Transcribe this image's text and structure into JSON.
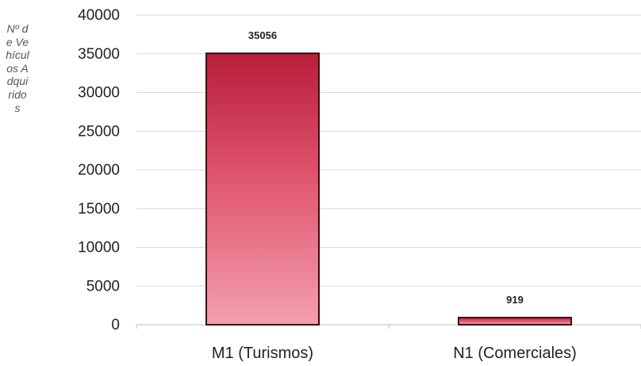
{
  "chart_data": {
    "type": "bar",
    "categories": [
      "M1 (Turismos)",
      "N1 (Comerciales)"
    ],
    "values": [
      35056,
      919
    ],
    "data_labels": [
      "35056",
      "919"
    ],
    "title": "",
    "xlabel": "",
    "ylabel": "Nº de Vehículos Adquiridos",
    "ylim": [
      0,
      40000
    ],
    "yticks": [
      0,
      5000,
      10000,
      15000,
      20000,
      25000,
      30000,
      35000,
      40000
    ],
    "grid": true,
    "legend": "none",
    "colors": {
      "bar_top": "#b81e3a",
      "bar_mid": "#e0546e",
      "bar_bottom": "#f3a0ae",
      "bar_border": "#3a0a12",
      "grid": "#d9d9d9",
      "tick_text": "#222222"
    }
  }
}
